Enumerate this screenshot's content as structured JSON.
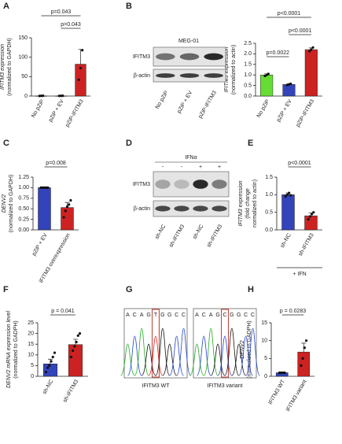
{
  "panel_labels": [
    "A",
    "B",
    "C",
    "D",
    "E",
    "F",
    "G",
    "H"
  ],
  "chart_data": [
    {
      "type": "bar",
      "y_label": [
        "IFITM3 expression",
        "(normalized to GAPDH)"
      ],
      "categories": [
        "No pZiP",
        "pZiP + EV",
        "pZiP-IFITM3"
      ],
      "values": [
        0.5,
        0.5,
        82
      ],
      "errors": [
        0.3,
        0.3,
        38
      ],
      "points": [
        [
          0.3,
          0.5,
          0.8
        ],
        [
          0.4,
          0.5,
          0.7
        ],
        [
          42,
          72,
          118
        ]
      ],
      "colors": [
        "#cc2222",
        "#cc2222",
        "#cc2222"
      ],
      "ylim": [
        0,
        150
      ],
      "yticks": [
        0,
        50,
        100,
        150
      ],
      "annotations": [
        "p=0.043",
        "p=0.043"
      ]
    },
    {
      "type": "bar",
      "y_label": [
        "IFITM3 expression",
        "(normalized to actin)"
      ],
      "categories": [
        "No pZiP",
        "pZiP + EV",
        "pZiP-IFITM3"
      ],
      "values": [
        1.0,
        0.55,
        2.2
      ],
      "errors": [
        0.05,
        0.03,
        0.08
      ],
      "points": [
        [
          0.95,
          1.0,
          1.05
        ],
        [
          0.52,
          0.55,
          0.58
        ],
        [
          2.12,
          2.2,
          2.3
        ]
      ],
      "colors": [
        "#66dd33",
        "#3344bb",
        "#cc2222"
      ],
      "ylim": [
        0,
        2.5
      ],
      "yticks": [
        {
          "value": 0,
          "label": "0.0"
        },
        {
          "value": 0.5,
          "label": "0.5"
        },
        {
          "value": 1,
          "label": "1.0"
        },
        {
          "value": 1.5,
          "label": "1.5"
        },
        {
          "value": 2,
          "label": "2.0"
        },
        {
          "value": 2.5,
          "label": "2.5"
        }
      ],
      "annotations": [
        "p=0.0022",
        "p<0.0001",
        "p<0.0001"
      ]
    },
    {
      "type": "bar",
      "y_label": [
        "DENV2",
        "(normalized to GAPDH)"
      ],
      "categories": [
        "pZiP + EV",
        "IFITM3 overexpression"
      ],
      "values": [
        1.0,
        0.53
      ],
      "errors": [
        0.005,
        0.12
      ],
      "points": [
        [
          1,
          1,
          1,
          1,
          1
        ],
        [
          0.3,
          0.45,
          0.55,
          0.6,
          0.7
        ]
      ],
      "colors": [
        "#3344bb",
        "#cc2222"
      ],
      "ylim": [
        0,
        1.25
      ],
      "yticks": [
        {
          "value": 0,
          "label": "0.00"
        },
        {
          "value": 0.25,
          "label": "0.25"
        },
        {
          "value": 0.5,
          "label": "0.50"
        },
        {
          "value": 0.75,
          "label": "0.75"
        },
        {
          "value": 1,
          "label": "1.00"
        },
        {
          "value": 1.25,
          "label": "1.25"
        }
      ],
      "annotations": [
        "p=0.008"
      ]
    },
    {
      "type": "bar",
      "y_label": [
        "IFITM3 expression",
        "(fold change",
        "normalized to actin)"
      ],
      "categories": [
        "sh-NC",
        "sh-IFITM3"
      ],
      "values": [
        1.0,
        0.4
      ],
      "errors": [
        0.05,
        0.08
      ],
      "points": [
        [
          0.95,
          1.0,
          1.05,
          0.98
        ],
        [
          0.3,
          0.38,
          0.45,
          0.5
        ]
      ],
      "colors": [
        "#3344bb",
        "#cc2222"
      ],
      "ylim": [
        0,
        1.5
      ],
      "yticks": [
        {
          "value": 0,
          "label": "0.0"
        },
        {
          "value": 0.5,
          "label": "0.5"
        },
        {
          "value": 1,
          "label": "1.0"
        },
        {
          "value": 1.5,
          "label": "1.5"
        }
      ],
      "annotations": [
        "p<0.0001"
      ],
      "group_label": "+ IFN"
    },
    {
      "type": "bar",
      "y_label": [
        "DENV2 mRNA expression level",
        "(normalized to GADPH)"
      ],
      "categories": [
        "sh-NC",
        "sh-IFITM3"
      ],
      "values": [
        5.8,
        14.8
      ],
      "errors": [
        2.2,
        2.5
      ],
      "points": [
        [
          2,
          4,
          5,
          7,
          9,
          11
        ],
        [
          9,
          12,
          14,
          16,
          19,
          20
        ]
      ],
      "colors": [
        "#3344bb",
        "#cc2222"
      ],
      "ylim": [
        0,
        25
      ],
      "yticks": [
        0,
        5,
        10,
        15,
        20,
        25
      ],
      "annotations": [
        "p = 0.041"
      ]
    },
    {
      "type": "bar",
      "y_label": [
        "DENV2",
        "(normalized to GADPH)"
      ],
      "categories": [
        "IFITM3 WT",
        "IFITM3 variant"
      ],
      "values": [
        1.0,
        6.8
      ],
      "errors": [
        0.05,
        2.5
      ],
      "points": [
        [
          1,
          1,
          1,
          1
        ],
        [
          3,
          5,
          8,
          10
        ]
      ],
      "colors": [
        "#3344bb",
        "#cc2222"
      ],
      "ylim": [
        0,
        15
      ],
      "yticks": [
        0,
        5,
        10,
        15
      ],
      "annotations": [
        "p = 0.0283"
      ]
    }
  ],
  "blot_b": {
    "title": "MEG-01",
    "rows": [
      "IFITM3",
      "β-actin"
    ],
    "lanes": [
      "No pZiP",
      "pZiP + EV",
      "pZiP-IFITM3"
    ]
  },
  "blot_d": {
    "title": "IFNα",
    "treatment": [
      "-",
      "-",
      "+",
      "+"
    ],
    "rows": [
      "IFITM3",
      "β-actin"
    ],
    "lanes": [
      "sh-NC",
      "sh-IFITM3",
      "sh-NC",
      "sh-IFITM3"
    ]
  },
  "chromatogram": {
    "sequences": [
      [
        "A",
        "C",
        "A",
        "G",
        "T",
        "G",
        "G",
        "C",
        "C"
      ],
      [
        "A",
        "C",
        "A",
        "G",
        "C",
        "G",
        "G",
        "C",
        "C"
      ]
    ],
    "labels": [
      "IFITM3 WT",
      "IFITM3 variant"
    ]
  }
}
